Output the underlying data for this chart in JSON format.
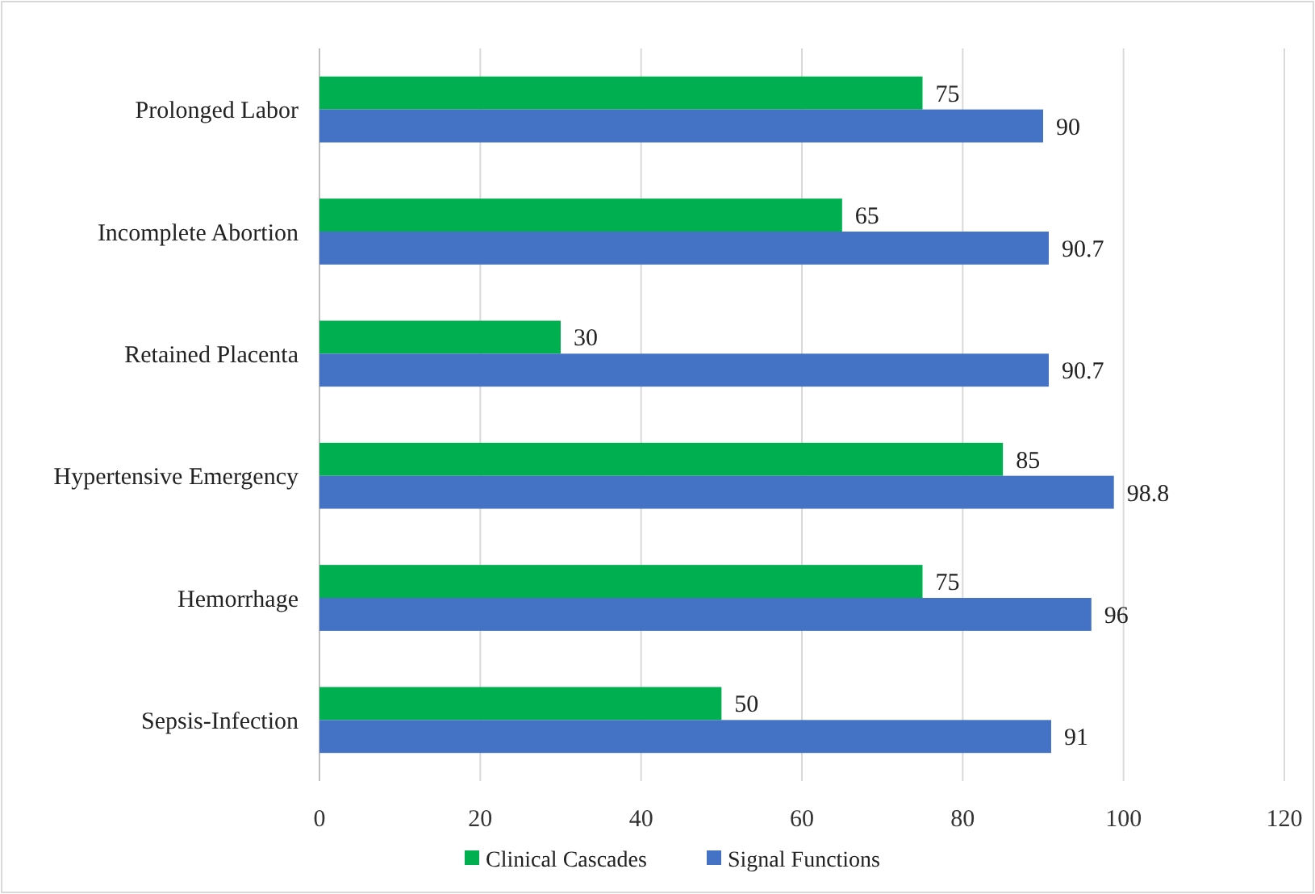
{
  "chart_data": {
    "type": "bar",
    "orientation": "horizontal",
    "categories": [
      "Prolonged Labor",
      "Incomplete Abortion",
      "Retained Placenta",
      "Hypertensive Emergency",
      "Hemorrhage",
      "Sepsis-Infection"
    ],
    "series": [
      {
        "name": "Clinical Cascades",
        "color": "#00b050",
        "values": [
          75,
          65,
          30,
          85,
          75,
          50
        ]
      },
      {
        "name": "Signal Functions",
        "color": "#4472c4",
        "values": [
          90,
          90.7,
          90.7,
          98.8,
          96,
          91
        ]
      }
    ],
    "xlim": [
      0,
      120
    ],
    "xticks": [
      0,
      20,
      40,
      60,
      80,
      100,
      120
    ],
    "grid": "x",
    "legend": "bottom",
    "data_labels": true
  }
}
